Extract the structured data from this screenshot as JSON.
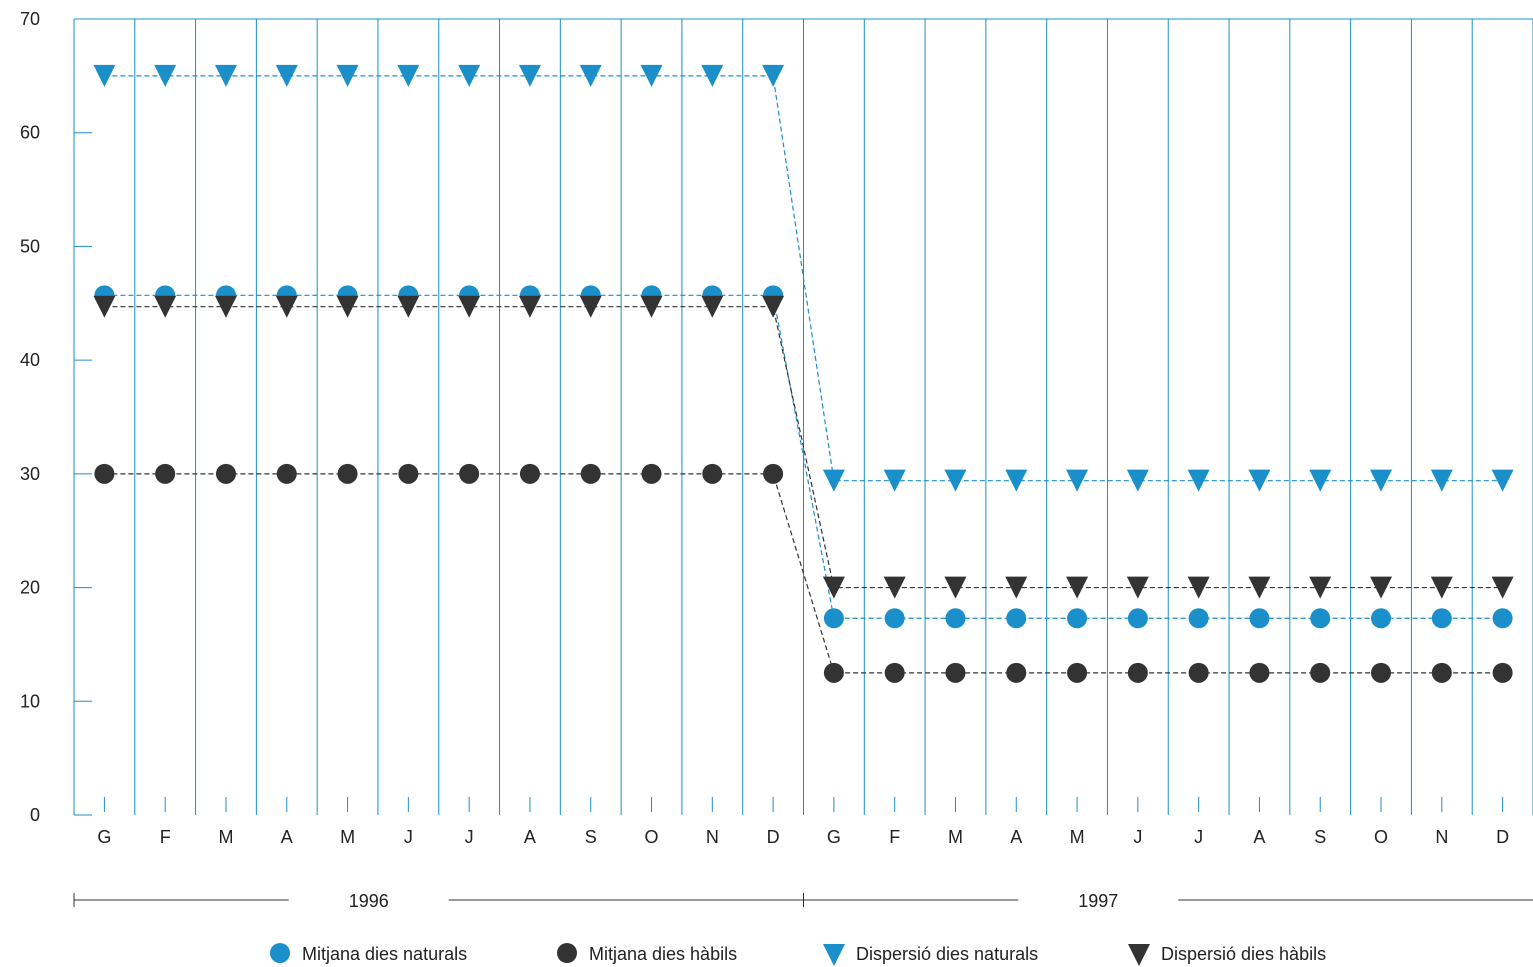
{
  "chart_data": {
    "type": "line",
    "categories": [
      "G",
      "F",
      "M",
      "A",
      "M",
      "J",
      "J",
      "A",
      "S",
      "O",
      "N",
      "D",
      "G",
      "F",
      "M",
      "A",
      "M",
      "J",
      "J",
      "A",
      "S",
      "O",
      "N",
      "D"
    ],
    "years": [
      "1996",
      "1997"
    ],
    "ylim": [
      0,
      70
    ],
    "yticks": [
      0,
      10,
      20,
      30,
      40,
      50,
      60,
      70
    ],
    "grid": true,
    "legend_position": "bottom",
    "series": [
      {
        "name": "Mitjana dies naturals",
        "marker": "circle",
        "color": "#1a8fc9",
        "values": [
          45.7,
          45.7,
          45.7,
          45.7,
          45.7,
          45.7,
          45.7,
          45.7,
          45.7,
          45.7,
          45.7,
          45.7,
          17.3,
          17.3,
          17.3,
          17.3,
          17.3,
          17.3,
          17.3,
          17.3,
          17.3,
          17.3,
          17.3,
          17.3
        ]
      },
      {
        "name": "Mitjana dies hàbils",
        "marker": "circle",
        "color": "#333333",
        "values": [
          30,
          30,
          30,
          30,
          30,
          30,
          30,
          30,
          30,
          30,
          30,
          30,
          12.5,
          12.5,
          12.5,
          12.5,
          12.5,
          12.5,
          12.5,
          12.5,
          12.5,
          12.5,
          12.5,
          12.5
        ]
      },
      {
        "name": "Dispersió dies naturals",
        "marker": "triangle-down",
        "color": "#1a8fc9",
        "values": [
          65,
          65,
          65,
          65,
          65,
          65,
          65,
          65,
          65,
          65,
          65,
          65,
          29.4,
          29.4,
          29.4,
          29.4,
          29.4,
          29.4,
          29.4,
          29.4,
          29.4,
          29.4,
          29.4,
          29.4
        ]
      },
      {
        "name": "Dispersió dies hàbils",
        "marker": "triangle-down",
        "color": "#333333",
        "values": [
          44.7,
          44.7,
          44.7,
          44.7,
          44.7,
          44.7,
          44.7,
          44.7,
          44.7,
          44.7,
          44.7,
          44.7,
          20,
          20,
          20,
          20,
          20,
          20,
          20,
          20,
          20,
          20,
          20,
          20
        ]
      }
    ]
  },
  "colors": {
    "grid_line": "#1a8fc9",
    "axis_text": "#222222"
  }
}
